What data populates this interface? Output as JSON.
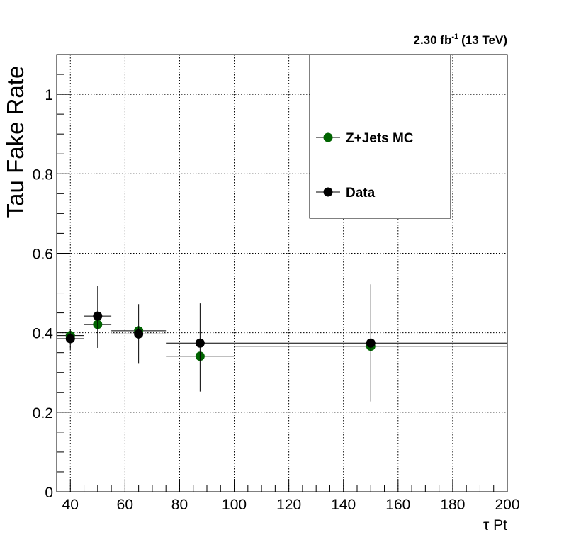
{
  "chart_data": {
    "type": "scatter",
    "ylabel": "Tau Fake Rate",
    "xlabel": "τ Pt",
    "annotation": {
      "value": "2.30 fb",
      "superscript": "-1",
      "suffix": "(13 TeV)"
    },
    "xlim": [
      35,
      200
    ],
    "ylim": [
      0,
      1.1
    ],
    "x_ticks": [
      {
        "value": 40,
        "label": "40"
      },
      {
        "value": 60,
        "label": "60"
      },
      {
        "value": 80,
        "label": "80"
      },
      {
        "value": 100,
        "label": "100"
      },
      {
        "value": 120,
        "label": "120"
      },
      {
        "value": 140,
        "label": "140"
      },
      {
        "value": 160,
        "label": "160"
      },
      {
        "value": 180,
        "label": "180"
      },
      {
        "value": 200,
        "label": "200"
      }
    ],
    "y_ticks": [
      {
        "value": 0,
        "label": "0"
      },
      {
        "value": 0.2,
        "label": "0.2"
      },
      {
        "value": 0.4,
        "label": "0.4"
      },
      {
        "value": 0.6,
        "label": "0.6"
      },
      {
        "value": 0.8,
        "label": "0.8"
      },
      {
        "value": 1.0,
        "label": "1"
      }
    ],
    "grid": true,
    "legend_position": "top-right",
    "series": [
      {
        "name": "Z+Jets MC",
        "color": "#006400",
        "points": [
          {
            "x": 40,
            "xlow": 35,
            "xhigh": 45,
            "y": 0.393,
            "ylow": 0.393,
            "yhigh": 0.393
          },
          {
            "x": 50,
            "xlow": 45,
            "xhigh": 55,
            "y": 0.421,
            "ylow": 0.421,
            "yhigh": 0.421
          },
          {
            "x": 65,
            "xlow": 55,
            "xhigh": 75,
            "y": 0.405,
            "ylow": 0.405,
            "yhigh": 0.405
          },
          {
            "x": 87.5,
            "xlow": 75,
            "xhigh": 100,
            "y": 0.341,
            "ylow": 0.341,
            "yhigh": 0.341
          },
          {
            "x": 150,
            "xlow": 100,
            "xhigh": 200,
            "y": 0.366,
            "ylow": 0.366,
            "yhigh": 0.366
          }
        ]
      },
      {
        "name": "Data",
        "color": "#000000",
        "points": [
          {
            "x": 40,
            "xlow": 35,
            "xhigh": 45,
            "y": 0.385,
            "ylow": 0.36,
            "yhigh": 0.41
          },
          {
            "x": 50,
            "xlow": 45,
            "xhigh": 55,
            "y": 0.442,
            "ylow": 0.362,
            "yhigh": 0.517
          },
          {
            "x": 65,
            "xlow": 55,
            "xhigh": 75,
            "y": 0.397,
            "ylow": 0.322,
            "yhigh": 0.472
          },
          {
            "x": 87.5,
            "xlow": 75,
            "xhigh": 100,
            "y": 0.374,
            "ylow": 0.252,
            "yhigh": 0.474
          },
          {
            "x": 150,
            "xlow": 100,
            "xhigh": 200,
            "y": 0.374,
            "ylow": 0.227,
            "yhigh": 0.522
          }
        ]
      }
    ]
  }
}
